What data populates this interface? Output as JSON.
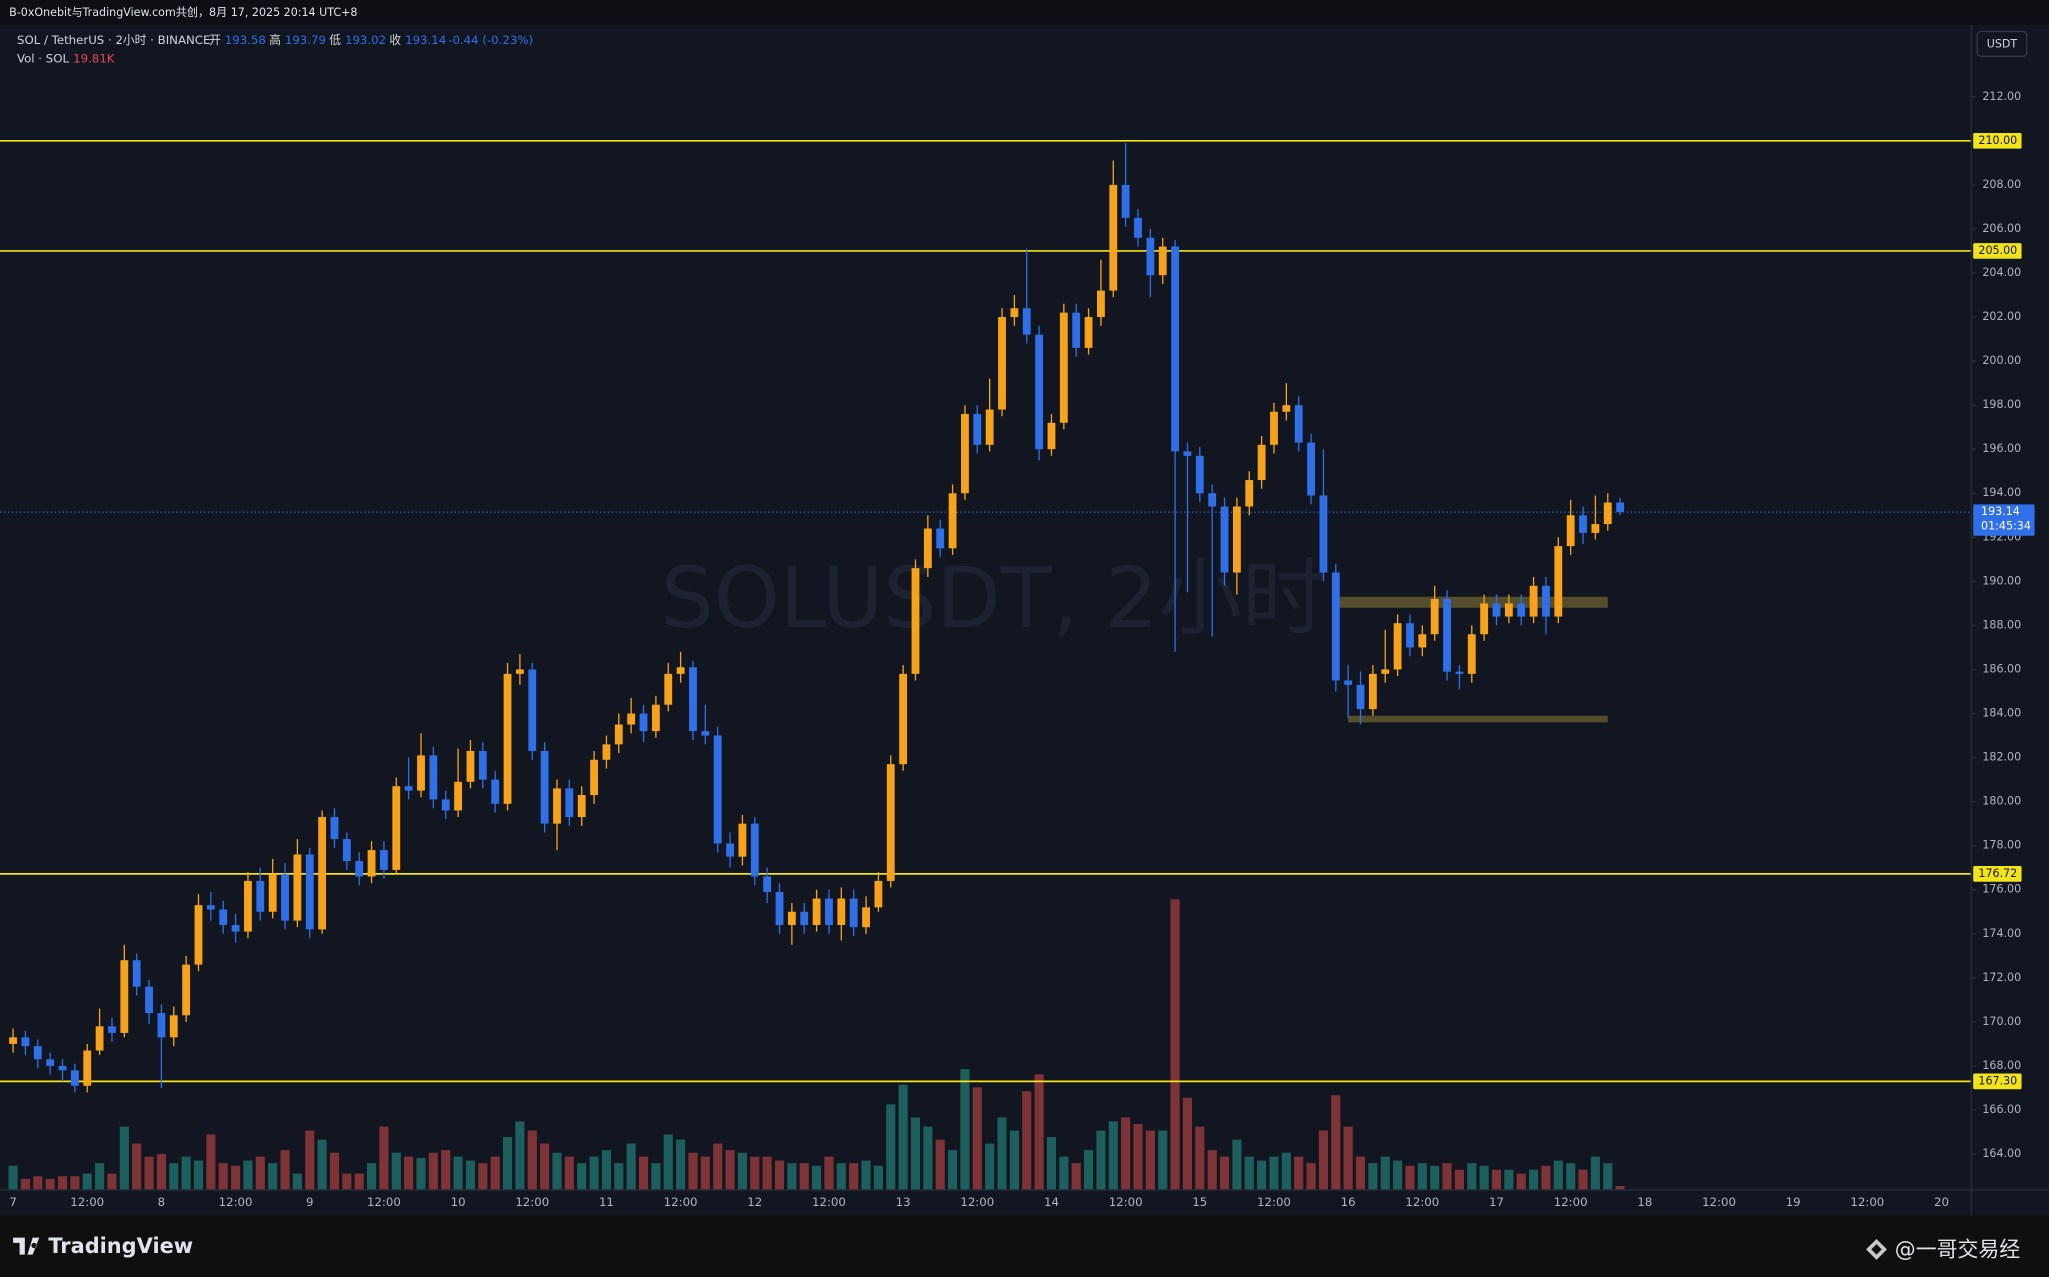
{
  "top_bar": "B-0xOnebit与TradingView.com共创，8月 17, 2025 20:14 UTC+8",
  "chart_data": {
    "type": "candlestick",
    "symbol_label": "SOL / TetherUS · 2小时 · BINANCE",
    "ohlc_labels": {
      "open": "开",
      "high": "高",
      "low": "低",
      "close": "收"
    },
    "change_label": "-0.44 (-0.23%)",
    "volume_title": "Vol · SOL",
    "volume_value_label": "19.81K",
    "currency": "USDT",
    "watermark": "SOLUSDT, 2小时",
    "countdown": "01:45:34",
    "categories": [
      "7",
      null,
      null,
      null,
      null,
      null,
      "12:00",
      null,
      null,
      null,
      null,
      null,
      "8",
      null,
      null,
      null,
      null,
      null,
      "12:00",
      null,
      null,
      null,
      null,
      null,
      "9",
      null,
      null,
      null,
      null,
      null,
      "12:00",
      null,
      null,
      null,
      null,
      null,
      "10",
      null,
      null,
      null,
      null,
      null,
      "12:00",
      null,
      null,
      null,
      null,
      null,
      "11",
      null,
      null,
      null,
      null,
      null,
      "12:00",
      null,
      null,
      null,
      null,
      null,
      "12",
      null,
      null,
      null,
      null,
      null,
      "12:00",
      null,
      null,
      null,
      null,
      null,
      "13",
      null,
      null,
      null,
      null,
      null,
      "12:00",
      null,
      null,
      null,
      null,
      null,
      "14",
      null,
      null,
      null,
      null,
      null,
      "12:00",
      null,
      null,
      null,
      null,
      null,
      "15",
      null,
      null,
      null,
      null,
      null,
      "12:00",
      null,
      null,
      null,
      null,
      null,
      "16",
      null,
      null,
      null,
      null,
      null,
      "12:00",
      null,
      null,
      null,
      null,
      null,
      "17",
      null,
      null,
      null,
      null,
      null,
      "12:00",
      null,
      null,
      null,
      null,
      null,
      "18",
      null,
      null,
      null,
      null,
      null,
      "12:00",
      null,
      null,
      null,
      null,
      null,
      "19",
      null,
      null,
      null,
      null,
      null,
      "12:00",
      null,
      null,
      null,
      null,
      null,
      "20",
      null,
      null
    ],
    "open": [
      169,
      169.3,
      168.9,
      168.3,
      168,
      167.8,
      167.1,
      168.7,
      169.8,
      169.5,
      172.8,
      171.6,
      170.4,
      169.3,
      170.3,
      172.6,
      175.3,
      175.1,
      174.4,
      174.1,
      176.4,
      175,
      176.7,
      174.6,
      177.6,
      174.2,
      179.3,
      178.3,
      177.3,
      176.6,
      177.8,
      176.9,
      180.7,
      180.5,
      182.1,
      180.1,
      179.6,
      180.9,
      182.3,
      181,
      179.9,
      185.8,
      186,
      182.3,
      179,
      180.6,
      179.3,
      180.3,
      181.9,
      182.6,
      183.5,
      184,
      183.2,
      184.4,
      185.8,
      186.1,
      183.2,
      183,
      178.1,
      177.5,
      179,
      176.6,
      175.9,
      174.4,
      175,
      174.4,
      175.6,
      174.4,
      175.6,
      174.3,
      175.2,
      176.4,
      181.7,
      185.8,
      190.6,
      192.4,
      191.5,
      194,
      197.6,
      196.2,
      197.8,
      202,
      202.4,
      201.2,
      196,
      197.2,
      202.2,
      200.6,
      202,
      203.2,
      208,
      206.5,
      205.6,
      203.9,
      205.2,
      195.9,
      195.7,
      194,
      193.4,
      190.4,
      193.4,
      194.6,
      196.2,
      197.7,
      198,
      196.3,
      193.9,
      190.4,
      185.5,
      185.3,
      184.2,
      185.8,
      186,
      188.1,
      187,
      187.6,
      189.2,
      185.9,
      185.8,
      187.6,
      189,
      188.4,
      189,
      188.4,
      189.8,
      188.4,
      191.6,
      193,
      192.2,
      192.6,
      193.58,
      null,
      null,
      null,
      null,
      null,
      null,
      null,
      null,
      null,
      null,
      null,
      null,
      null,
      null,
      null,
      null,
      null,
      null,
      null,
      null,
      null,
      null,
      null,
      null,
      null,
      null,
      null,
      null
    ],
    "high": [
      169.7,
      169.6,
      169.2,
      168.6,
      168.3,
      168.1,
      169,
      170.6,
      170.2,
      173.5,
      173.1,
      171.9,
      170.8,
      170.7,
      173,
      175.8,
      175.9,
      175.5,
      174.9,
      176.8,
      177,
      177.4,
      177.2,
      178.3,
      177.9,
      179.6,
      179.7,
      178.6,
      177.7,
      178.2,
      178.2,
      181.1,
      182,
      183.1,
      182.5,
      180.5,
      182.4,
      182.8,
      182.7,
      181.4,
      186.3,
      186.7,
      186.3,
      182.7,
      181,
      181,
      180.7,
      182.3,
      183,
      184,
      184.7,
      184.4,
      184.8,
      186.3,
      186.8,
      186.4,
      184.4,
      183.4,
      178.6,
      179.4,
      179.3,
      177,
      176.3,
      175.4,
      175.4,
      176,
      176,
      176.1,
      176,
      175.7,
      176.8,
      182.1,
      186.2,
      191,
      193,
      192.8,
      194.4,
      198,
      198,
      199.2,
      202.4,
      203,
      205.1,
      201.6,
      197.6,
      202.6,
      202.6,
      202.4,
      204.6,
      209.1,
      209.9,
      206.9,
      206,
      205.6,
      205.5,
      196.3,
      196.1,
      194.4,
      193.8,
      193.8,
      195,
      196.6,
      198.1,
      199,
      198.4,
      196.7,
      196,
      190.8,
      186.2,
      185.9,
      186.2,
      187.8,
      188.5,
      188.5,
      188,
      189.8,
      189.6,
      186.2,
      188,
      189.4,
      189.4,
      189.4,
      189.4,
      190.2,
      190.2,
      192,
      193.7,
      193.4,
      193.9,
      194,
      193.79,
      null,
      null,
      null,
      null,
      null,
      null,
      null,
      null,
      null,
      null,
      null,
      null,
      null,
      null,
      null,
      null,
      null,
      null,
      null,
      null,
      null,
      null,
      null,
      null,
      null,
      null,
      null,
      null
    ],
    "low": [
      168.6,
      168.5,
      167.9,
      167.6,
      167.3,
      166.8,
      166.8,
      168.5,
      169.1,
      169.3,
      171.2,
      169.9,
      167,
      168.9,
      170,
      172.3,
      174.6,
      174,
      173.6,
      173.8,
      174.6,
      174.7,
      174.2,
      174.3,
      173.8,
      174,
      177.9,
      176.9,
      176.2,
      176.3,
      176.5,
      176.7,
      180.1,
      180.2,
      179.7,
      179.2,
      179.3,
      180.6,
      180.6,
      179.5,
      179.6,
      185.3,
      181.9,
      178.6,
      177.8,
      178.9,
      178.9,
      179.9,
      181.5,
      182.2,
      183.1,
      182.7,
      182.9,
      184.1,
      185.4,
      182.8,
      182.6,
      177.7,
      177,
      177.1,
      176.2,
      175.4,
      174,
      173.5,
      174,
      174.1,
      174,
      173.7,
      173.9,
      174,
      175,
      176.1,
      181.4,
      185.5,
      190.2,
      191.1,
      191.2,
      193.7,
      195.8,
      195.9,
      197.5,
      201.6,
      200.8,
      195.5,
      195.7,
      196.9,
      200.2,
      200.3,
      201.6,
      202.9,
      206.1,
      205.2,
      202.9,
      203.5,
      186.8,
      189.5,
      193.6,
      187.5,
      189.8,
      189.4,
      193,
      194.2,
      195.8,
      197.3,
      195.9,
      193.5,
      190,
      185,
      183.8,
      183.5,
      183.9,
      185.4,
      185.7,
      186.6,
      186.6,
      187.3,
      185.5,
      185.1,
      185.4,
      187.3,
      188,
      188.1,
      188,
      188.1,
      187.6,
      188.1,
      191.2,
      191.7,
      191.9,
      192.3,
      193.02,
      null,
      null,
      null,
      null,
      null,
      null,
      null,
      null,
      null,
      null,
      null,
      null,
      null,
      null,
      null,
      null,
      null,
      null,
      null,
      null,
      null,
      null,
      null,
      null,
      null,
      null,
      null,
      null
    ],
    "close": [
      169.3,
      168.9,
      168.3,
      168,
      167.8,
      167.1,
      168.7,
      169.8,
      169.5,
      172.8,
      171.6,
      170.4,
      169.3,
      170.3,
      172.6,
      175.3,
      175.1,
      174.4,
      174.1,
      176.4,
      175,
      176.7,
      174.6,
      177.6,
      174.2,
      179.3,
      178.3,
      177.3,
      176.6,
      177.8,
      176.9,
      180.7,
      180.5,
      182.1,
      180.1,
      179.6,
      180.9,
      182.3,
      181,
      179.9,
      185.8,
      186,
      182.3,
      179,
      180.6,
      179.3,
      180.3,
      181.9,
      182.6,
      183.5,
      184,
      183.2,
      184.4,
      185.8,
      186.1,
      183.2,
      183,
      178.1,
      177.5,
      179,
      176.6,
      175.9,
      174.4,
      175,
      174.4,
      175.6,
      174.4,
      175.6,
      174.3,
      175.2,
      176.4,
      181.7,
      185.8,
      190.6,
      192.4,
      191.5,
      194,
      197.6,
      196.2,
      197.8,
      202,
      202.4,
      201.2,
      196,
      197.2,
      202.2,
      200.6,
      202,
      203.2,
      208,
      206.5,
      205.6,
      203.9,
      205.2,
      195.9,
      195.7,
      194,
      193.4,
      190.4,
      193.4,
      194.6,
      196.2,
      197.7,
      198,
      196.3,
      193.9,
      190.4,
      185.5,
      185.3,
      184.2,
      185.8,
      186,
      188.1,
      187,
      187.6,
      189.2,
      185.9,
      185.8,
      187.6,
      189,
      188.4,
      189,
      188.4,
      189.8,
      188.4,
      191.6,
      193,
      192.2,
      192.6,
      193.58,
      193.14,
      null,
      null,
      null,
      null,
      null,
      null,
      null,
      null,
      null,
      null,
      null,
      null,
      null,
      null,
      null,
      null,
      null,
      null,
      null,
      null,
      null,
      null,
      null,
      null,
      null,
      null,
      null,
      null
    ],
    "volume": [
      144,
      64,
      80,
      64,
      80,
      80,
      96,
      160,
      96,
      384,
      280,
      200,
      216,
      160,
      200,
      176,
      336,
      160,
      144,
      176,
      200,
      160,
      240,
      96,
      360,
      304,
      224,
      96,
      96,
      160,
      384,
      224,
      200,
      192,
      224,
      240,
      200,
      176,
      160,
      200,
      320,
      416,
      360,
      280,
      224,
      200,
      160,
      200,
      240,
      160,
      280,
      200,
      160,
      336,
      304,
      224,
      200,
      280,
      240,
      224,
      200,
      200,
      176,
      160,
      160,
      144,
      200,
      160,
      160,
      176,
      144,
      520,
      640,
      440,
      384,
      304,
      240,
      736,
      624,
      280,
      440,
      360,
      600,
      704,
      320,
      200,
      160,
      240,
      360,
      416,
      440,
      400,
      360,
      360,
      1776,
      560,
      384,
      240,
      200,
      304,
      200,
      176,
      200,
      224,
      200,
      160,
      360,
      576,
      384,
      200,
      160,
      200,
      176,
      144,
      160,
      144,
      160,
      120,
      160,
      144,
      120,
      120,
      96,
      120,
      144,
      176,
      160,
      120,
      200,
      160,
      19.81,
      null,
      null,
      null,
      null,
      null,
      null,
      null,
      null,
      null,
      null,
      null,
      null,
      null,
      null,
      null,
      null,
      null,
      null,
      null,
      null,
      null,
      null,
      null,
      null,
      null,
      null,
      null,
      null
    ],
    "up_color": "#f7a21b",
    "down_color": "#2f6fe8",
    "volume_up_color": "#1d5f5c",
    "volume_down_color": "#7e3337",
    "ylim": [
      162.4,
      215.2
    ],
    "yticks": [
      {
        "value": 164,
        "label": "164.00"
      },
      {
        "value": 166,
        "label": "166.00"
      },
      {
        "value": 168,
        "label": "168.00"
      },
      {
        "value": 170,
        "label": "170.00"
      },
      {
        "value": 172,
        "label": "172.00"
      },
      {
        "value": 174,
        "label": "174.00"
      },
      {
        "value": 176,
        "label": "176.00"
      },
      {
        "value": 178,
        "label": "178.00"
      },
      {
        "value": 180,
        "label": "180.00"
      },
      {
        "value": 182,
        "label": "182.00"
      },
      {
        "value": 184,
        "label": "184.00"
      },
      {
        "value": 186,
        "label": "186.00"
      },
      {
        "value": 188,
        "label": "188.00"
      },
      {
        "value": 190,
        "label": "190.00"
      },
      {
        "value": 192,
        "label": "192.00"
      },
      {
        "value": 194,
        "label": "194.00"
      },
      {
        "value": 196,
        "label": "196.00"
      },
      {
        "value": 198,
        "label": "198.00"
      },
      {
        "value": 200,
        "label": "200.00"
      },
      {
        "value": 202,
        "label": "202.00"
      },
      {
        "value": 204,
        "label": "204.00"
      },
      {
        "value": 206,
        "label": "206.00"
      },
      {
        "value": 208,
        "label": "208.00"
      },
      {
        "value": 210,
        "label": "210.00"
      },
      {
        "value": 212,
        "label": "212.00"
      }
    ],
    "hlines": [
      {
        "value": 210,
        "label": "210.00"
      },
      {
        "value": 205,
        "label": "205.00"
      },
      {
        "value": 176.72,
        "label": "176.72"
      },
      {
        "value": 167.3,
        "label": "167.30"
      }
    ],
    "hline_color": "#f2e31b",
    "zones": [
      {
        "from": 188.8,
        "to": 189.3
      },
      {
        "from": 183.6,
        "to": 183.9
      }
    ],
    "zone_color": "#6b6232",
    "grid": false
  },
  "footer": {
    "brand": "TradingView",
    "credit": "@一哥交易经"
  }
}
